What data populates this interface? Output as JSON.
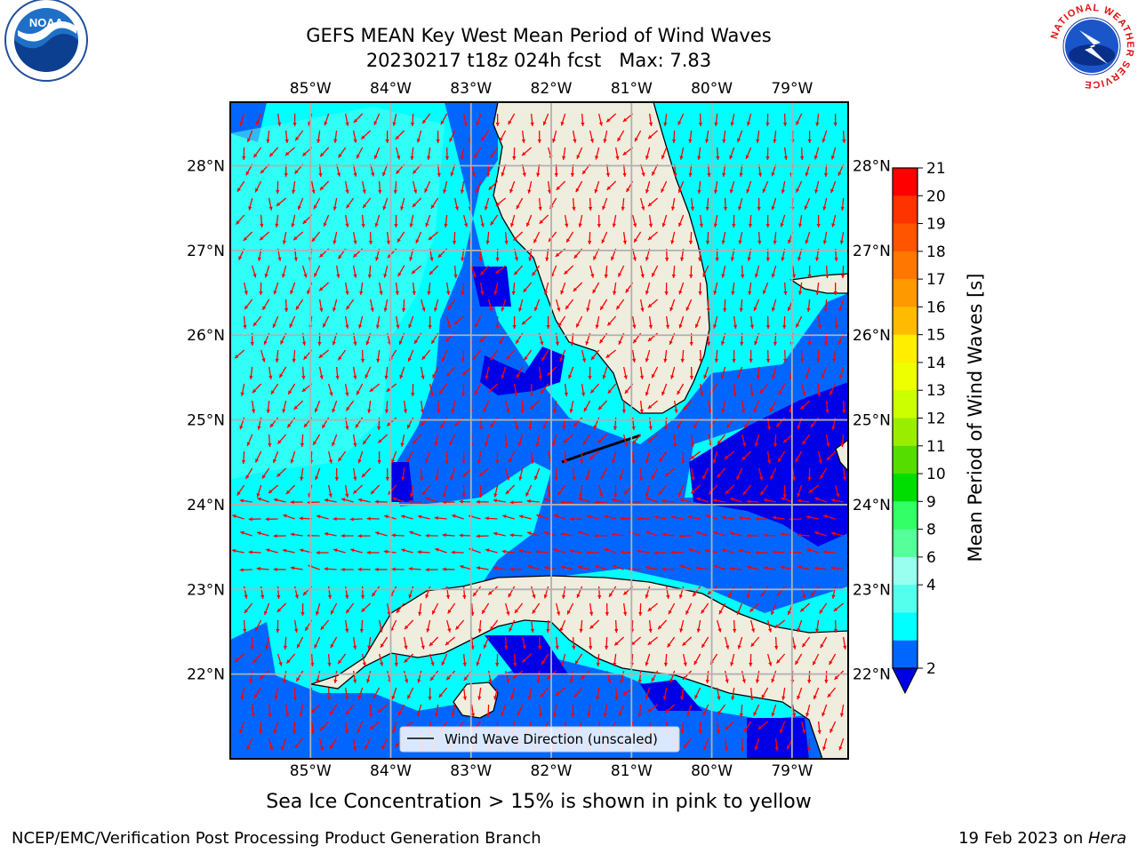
{
  "header": {
    "title_line1": "GEFS MEAN Key West Mean Period of Wind Waves",
    "title_line2": "20230217 t18z 024h fcst   Max: 7.83"
  },
  "logos": {
    "left": "NOAA",
    "right_ring_text": "NATIONAL WEATHER SERVICE"
  },
  "map": {
    "lon_labels": [
      "85°W",
      "84°W",
      "83°W",
      "82°W",
      "81°W",
      "80°W",
      "79°W"
    ],
    "lat_labels": [
      "28°N",
      "27°N",
      "26°N",
      "25°N",
      "24°N",
      "23°N",
      "22°N"
    ],
    "lon_values": [
      -85,
      -84,
      -83,
      -82,
      -81,
      -80,
      -79
    ],
    "lat_values": [
      28,
      27,
      26,
      25,
      24,
      23,
      22
    ],
    "extent": {
      "lon_min": -86.0,
      "lon_max": -78.3,
      "lat_min": 21.0,
      "lat_max": 28.75
    },
    "legend_label": "Wind Wave Direction (unscaled)",
    "colors": {
      "land": "#efedde",
      "ocean_low": "#0066ff",
      "ocean_mid": "#00ffff",
      "ocean_min": "#0000e6",
      "arrow": "#ff0000",
      "grid": "#b0b0b0"
    }
  },
  "colorbar": {
    "label": "Mean Period of Wind Waves [s]",
    "ticks": [
      "21",
      "20",
      "19",
      "18",
      "17",
      "16",
      "15",
      "14",
      "13",
      "12",
      "11",
      "10",
      "9",
      "8",
      "6",
      "4",
      "2"
    ],
    "colors_top_to_bottom": [
      "#ff0000",
      "#ff3300",
      "#ff5500",
      "#ff7700",
      "#ff9900",
      "#ffbb00",
      "#ffee00",
      "#eeff00",
      "#ccff00",
      "#99ee00",
      "#55dd00",
      "#00dd00",
      "#33ff66",
      "#55ff99",
      "#99ffee",
      "#55ffee",
      "#00ffff",
      "#0066ff"
    ],
    "extend_color": "#0000e6"
  },
  "footer": {
    "ice_note": "Sea Ice Concentration > 15% is shown in pink to yellow",
    "left": "NCEP/EMC/Verification Post Processing Product Generation Branch",
    "right_date": "19 Feb 2023 on ",
    "right_host": "Hera"
  }
}
